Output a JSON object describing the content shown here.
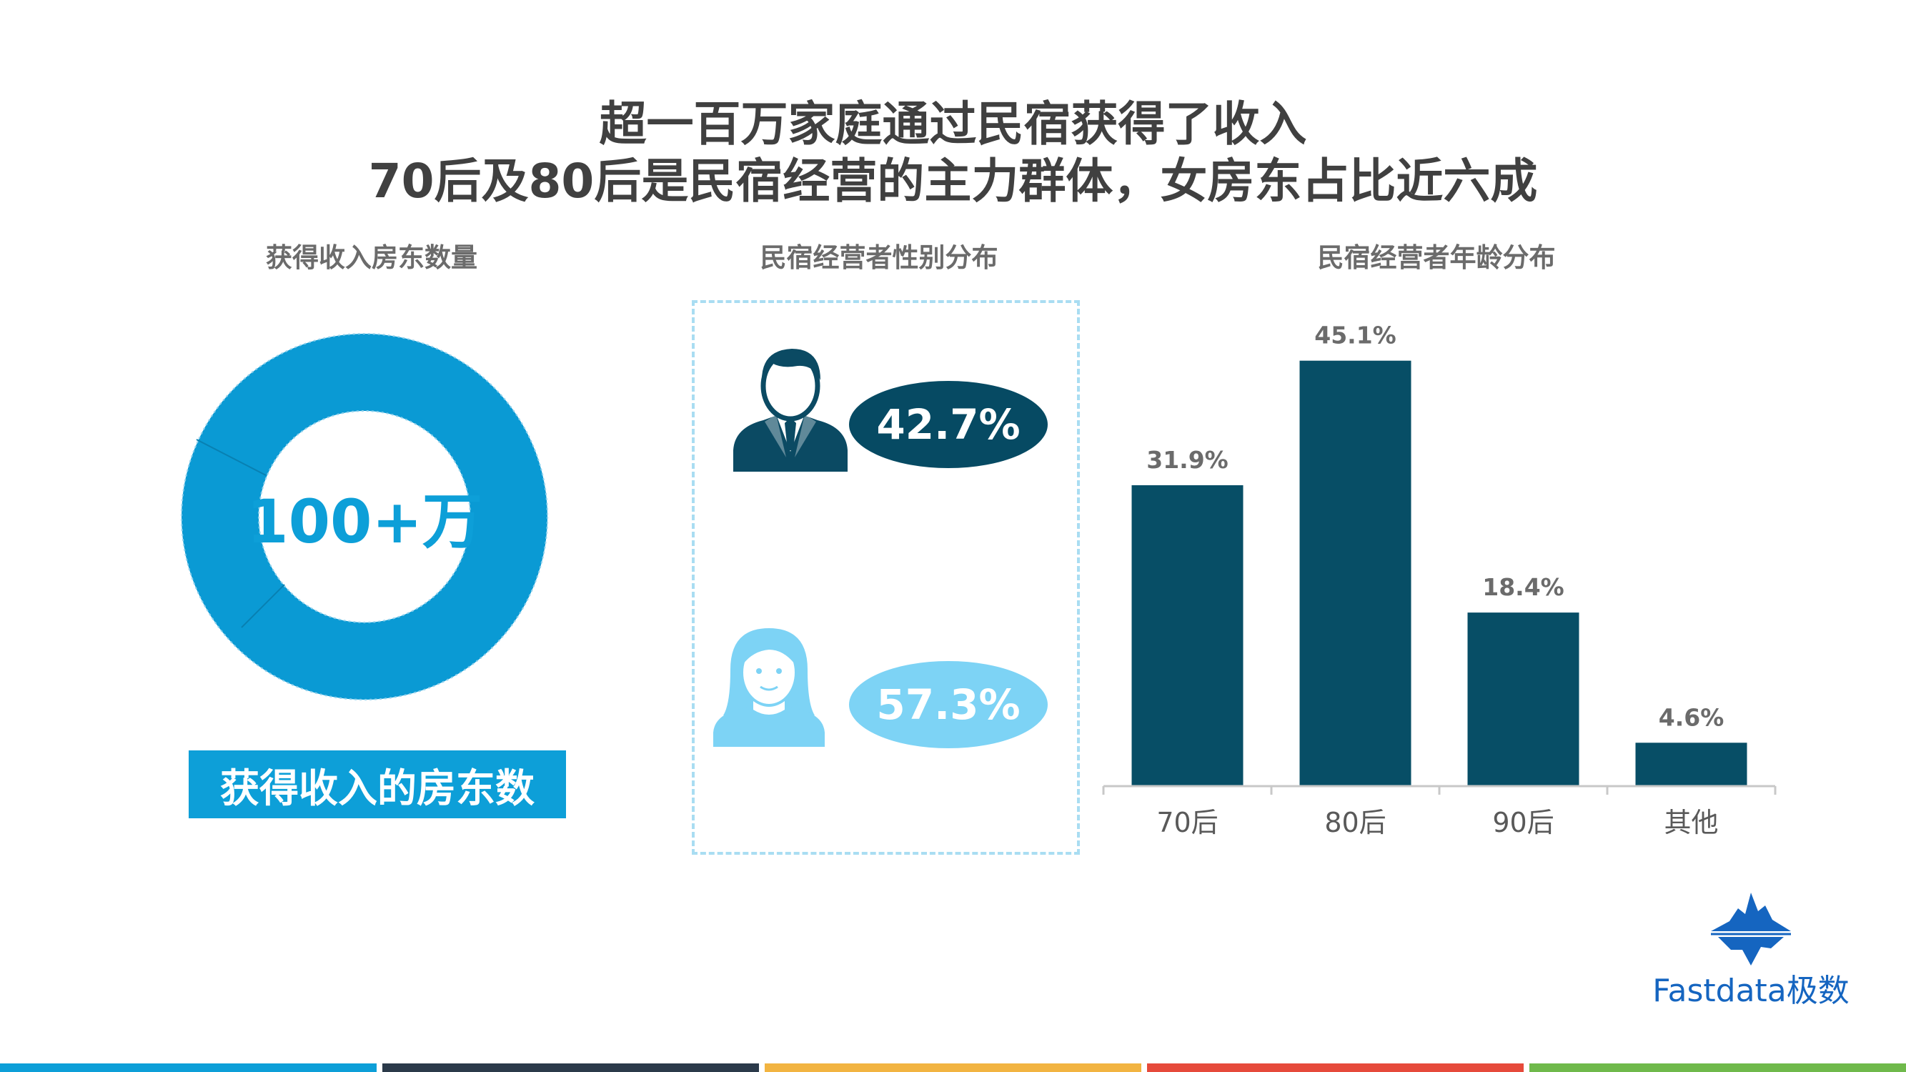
{
  "title": {
    "line1": "超一百万家庭通过民宿获得了收入",
    "line2": "70后及80后是民宿经营的主力群体，女房东占比近六成"
  },
  "sections": {
    "income": "获得收入房东数量",
    "gender": "民宿经营者性别分布",
    "age": "民宿经营者年龄分布"
  },
  "income": {
    "center_value": "100+万",
    "label": "获得收入的房东数"
  },
  "gender": {
    "male_pct": "42.7%",
    "female_pct": "57.3%"
  },
  "chart_data": {
    "type": "bar",
    "categories": [
      "70后",
      "80后",
      "90后",
      "其他"
    ],
    "values": [
      31.9,
      45.1,
      18.4,
      4.6
    ],
    "value_labels": [
      "31.9%",
      "45.1%",
      "18.4%",
      "4.6%"
    ],
    "ylim": [
      0,
      50
    ],
    "title": "民宿经营者年龄分布",
    "color": "#074e66",
    "grid": false
  },
  "logo": {
    "text": "Fastdata极数"
  },
  "colors": {
    "accent_blue": "#0d9fd8",
    "dark_teal": "#074e66",
    "light_blue": "#7dd3f5",
    "stripes": [
      "#0d9fd8",
      "#2b3a4a",
      "#f2b441",
      "#e64a3b",
      "#6fb94b"
    ]
  }
}
